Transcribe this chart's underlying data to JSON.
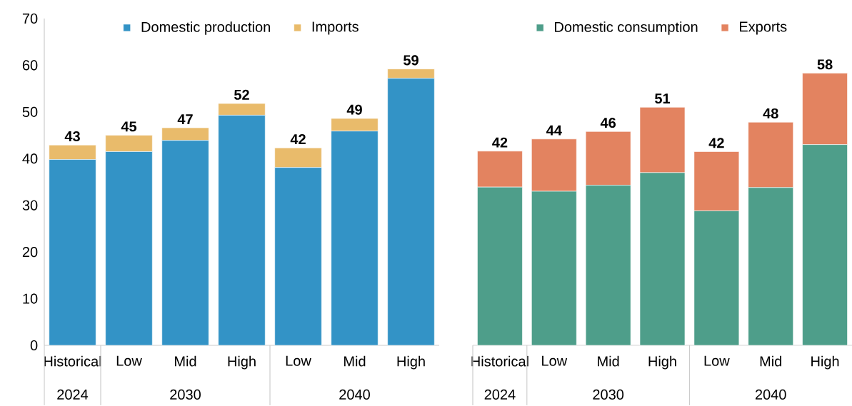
{
  "chart_data": [
    {
      "type": "bar",
      "stacked": true,
      "categories": [
        "Historical",
        "Low",
        "Mid",
        "High",
        "Low",
        "Mid",
        "High"
      ],
      "series": [
        {
          "name": "Domestic production",
          "color": "#3393c6",
          "values": [
            39.8,
            41.5,
            43.9,
            49.3,
            38.1,
            45.9,
            57.2
          ]
        },
        {
          "name": "Imports",
          "color": "#e9bb6b",
          "values": [
            3.1,
            3.5,
            2.7,
            2.5,
            4.2,
            2.7,
            2.0
          ]
        }
      ],
      "totals": [
        "43",
        "45",
        "47",
        "52",
        "42",
        "49",
        "59"
      ],
      "ylim": [
        0,
        70
      ],
      "yticks": [
        0,
        10,
        20,
        30,
        40,
        50,
        60,
        70
      ],
      "legend": "top",
      "annotations": [
        "2024",
        "2030",
        "2040"
      ]
    },
    {
      "type": "bar",
      "stacked": true,
      "categories": [
        "Historical",
        "Low",
        "Mid",
        "High",
        "Low",
        "Mid",
        "High"
      ],
      "series": [
        {
          "name": "Domestic consumption",
          "color": "#4e9e8a",
          "values": [
            33.9,
            33.0,
            34.3,
            37.0,
            28.8,
            33.8,
            43.0
          ]
        },
        {
          "name": "Exports",
          "color": "#e38360",
          "values": [
            7.7,
            11.2,
            11.5,
            14.0,
            12.7,
            14.0,
            15.3
          ]
        }
      ],
      "totals": [
        "42",
        "44",
        "46",
        "51",
        "42",
        "48",
        "58"
      ],
      "ylim": [
        0,
        70
      ],
      "yticks": [
        0,
        10,
        20,
        30,
        40,
        50,
        60,
        70
      ],
      "tick_labels": "x",
      "legend": "top",
      "annotations": [
        "2024",
        "2030",
        "2040"
      ]
    }
  ]
}
